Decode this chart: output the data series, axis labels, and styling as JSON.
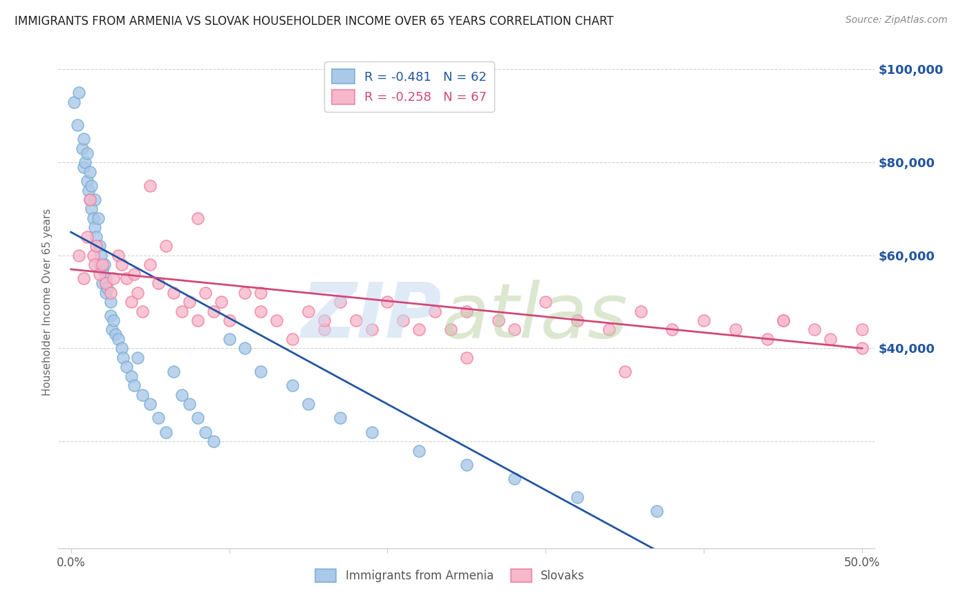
{
  "title": "IMMIGRANTS FROM ARMENIA VS SLOVAK HOUSEHOLDER INCOME OVER 65 YEARS CORRELATION CHART",
  "source": "Source: ZipAtlas.com",
  "ylabel_axis": "Householder Income Over 65 years",
  "legend_stat_labels": [
    "R = -0.481   N = 62",
    "R = -0.258   N = 67"
  ],
  "legend_bottom_labels": [
    "Immigrants from Armenia",
    "Slovaks"
  ],
  "armenia_fill_color": "#aac8e8",
  "armenia_edge_color": "#7bafd4",
  "slovak_fill_color": "#f8b8cc",
  "slovak_edge_color": "#f080a0",
  "armenia_line_color": "#2255a0",
  "slovak_line_color": "#d04878",
  "title_color": "#222222",
  "source_color": "#888888",
  "axis_tick_color": "#2255a0",
  "ylabel_color": "#666666",
  "grid_color": "#cccccc",
  "background_color": "#ffffff",
  "xmin": 0.0,
  "xmax": 0.5,
  "ymin": 0,
  "ymax": 100000,
  "armenia_N": 62,
  "slovak_N": 67,
  "armenia_R": -0.481,
  "slovak_R": -0.258,
  "armenia_x": [
    0.002,
    0.004,
    0.005,
    0.007,
    0.008,
    0.008,
    0.009,
    0.01,
    0.01,
    0.011,
    0.012,
    0.012,
    0.013,
    0.013,
    0.014,
    0.015,
    0.015,
    0.016,
    0.017,
    0.018,
    0.018,
    0.019,
    0.02,
    0.02,
    0.021,
    0.022,
    0.022,
    0.023,
    0.025,
    0.025,
    0.026,
    0.027,
    0.028,
    0.03,
    0.032,
    0.033,
    0.035,
    0.038,
    0.04,
    0.042,
    0.045,
    0.05,
    0.055,
    0.06,
    0.065,
    0.07,
    0.075,
    0.08,
    0.085,
    0.09,
    0.1,
    0.11,
    0.12,
    0.14,
    0.15,
    0.17,
    0.19,
    0.22,
    0.25,
    0.28,
    0.32,
    0.37
  ],
  "armenia_y": [
    93000,
    88000,
    95000,
    83000,
    79000,
    85000,
    80000,
    76000,
    82000,
    74000,
    72000,
    78000,
    70000,
    75000,
    68000,
    66000,
    72000,
    64000,
    68000,
    62000,
    58000,
    60000,
    57000,
    54000,
    58000,
    55000,
    52000,
    53000,
    50000,
    47000,
    44000,
    46000,
    43000,
    42000,
    40000,
    38000,
    36000,
    34000,
    32000,
    38000,
    30000,
    28000,
    25000,
    22000,
    35000,
    30000,
    28000,
    25000,
    22000,
    20000,
    42000,
    40000,
    35000,
    32000,
    28000,
    25000,
    22000,
    18000,
    15000,
    12000,
    8000,
    5000
  ],
  "slovak_x": [
    0.005,
    0.008,
    0.01,
    0.012,
    0.014,
    0.015,
    0.016,
    0.018,
    0.02,
    0.022,
    0.025,
    0.027,
    0.03,
    0.032,
    0.035,
    0.038,
    0.04,
    0.042,
    0.045,
    0.05,
    0.055,
    0.06,
    0.065,
    0.07,
    0.075,
    0.08,
    0.085,
    0.09,
    0.095,
    0.1,
    0.11,
    0.12,
    0.13,
    0.14,
    0.15,
    0.16,
    0.17,
    0.18,
    0.19,
    0.2,
    0.21,
    0.22,
    0.23,
    0.24,
    0.25,
    0.27,
    0.28,
    0.3,
    0.32,
    0.34,
    0.36,
    0.38,
    0.4,
    0.42,
    0.44,
    0.45,
    0.47,
    0.48,
    0.5,
    0.05,
    0.08,
    0.12,
    0.16,
    0.25,
    0.35,
    0.45,
    0.5
  ],
  "slovak_y": [
    60000,
    55000,
    64000,
    72000,
    60000,
    58000,
    62000,
    56000,
    58000,
    54000,
    52000,
    55000,
    60000,
    58000,
    55000,
    50000,
    56000,
    52000,
    48000,
    58000,
    54000,
    62000,
    52000,
    48000,
    50000,
    46000,
    52000,
    48000,
    50000,
    46000,
    52000,
    48000,
    46000,
    42000,
    48000,
    44000,
    50000,
    46000,
    44000,
    50000,
    46000,
    44000,
    48000,
    44000,
    48000,
    46000,
    44000,
    50000,
    46000,
    44000,
    48000,
    44000,
    46000,
    44000,
    42000,
    46000,
    44000,
    42000,
    44000,
    75000,
    68000,
    52000,
    46000,
    38000,
    35000,
    46000,
    40000
  ]
}
